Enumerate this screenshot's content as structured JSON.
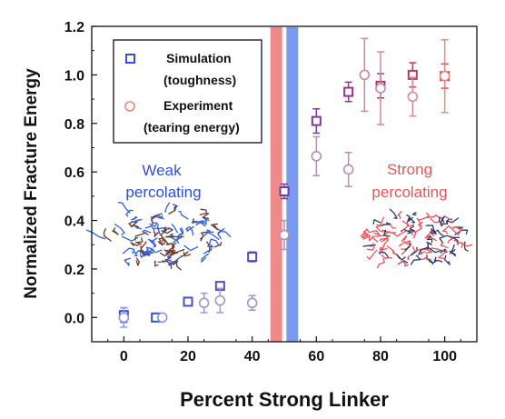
{
  "chart_data": {
    "type": "scatter",
    "xlabel": "Percent Strong Linker",
    "ylabel": "Normalized Fracture Energy",
    "xlim": [
      -10,
      110
    ],
    "ylim": [
      -0.1,
      1.2
    ],
    "xticks": [
      0,
      20,
      40,
      60,
      80,
      100
    ],
    "yticks": [
      0.0,
      0.2,
      0.4,
      0.6,
      0.8,
      1.0,
      1.2
    ],
    "xtick_labels": [
      "0",
      "20",
      "40",
      "60",
      "80",
      "100"
    ],
    "ytick_labels": [
      "0.0",
      "0.2",
      "0.4",
      "0.6",
      "0.8",
      "1.0",
      "1.2"
    ],
    "legend_position": "top-left",
    "legend": [
      {
        "marker": "square",
        "line1": "Simulation",
        "line2": "(toughness)"
      },
      {
        "marker": "circle",
        "line1": "Experiment",
        "line2": "(tearing energy)"
      }
    ],
    "bands": [
      {
        "x": 47.5,
        "color": "#f08a8a"
      },
      {
        "x": 52.5,
        "color": "#7a9af0"
      }
    ],
    "annotations": [
      {
        "line1": "Weak",
        "line2": "percolating",
        "color": "#2f4fd8"
      },
      {
        "line1": "Strong",
        "line2": "percolating",
        "color": "#e8545a"
      }
    ],
    "series": [
      {
        "marker": "square",
        "points": [
          {
            "x": 0,
            "y": 0.01,
            "err": 0.03,
            "color": "#3a4fd0"
          },
          {
            "x": 10,
            "y": 0.0,
            "err": 0.0,
            "color": "#3a4fd0"
          },
          {
            "x": 20,
            "y": 0.065,
            "err": 0.0,
            "color": "#4a4ec8"
          },
          {
            "x": 30,
            "y": 0.13,
            "err": 0.0,
            "color": "#574cc2"
          },
          {
            "x": 40,
            "y": 0.25,
            "err": 0.02,
            "color": "#5e49b8"
          },
          {
            "x": 50,
            "y": 0.52,
            "err": 0.03,
            "color": "#6e3ea8"
          },
          {
            "x": 60,
            "y": 0.81,
            "err": 0.05,
            "color": "#7e3a98"
          },
          {
            "x": 70,
            "y": 0.93,
            "err": 0.04,
            "color": "#8e3888"
          },
          {
            "x": 80,
            "y": 0.955,
            "err": 0.05,
            "color": "#a23878"
          },
          {
            "x": 90,
            "y": 1.0,
            "err": 0.05,
            "color": "#b83a66"
          },
          {
            "x": 100,
            "y": 0.995,
            "err": 0.05,
            "color": "#d23c52"
          }
        ]
      },
      {
        "marker": "circle",
        "points": [
          {
            "x": 0,
            "y": 0.0,
            "err": 0.04,
            "color": "#8a9ae0"
          },
          {
            "x": 12,
            "y": 0.0,
            "err": 0.0,
            "color": "#8c98dc"
          },
          {
            "x": 25,
            "y": 0.06,
            "err": 0.04,
            "color": "#9a98d0"
          },
          {
            "x": 30,
            "y": 0.07,
            "err": 0.05,
            "color": "#a096c8"
          },
          {
            "x": 40,
            "y": 0.06,
            "err": 0.03,
            "color": "#a894c2"
          },
          {
            "x": 50,
            "y": 0.34,
            "err": 0.06,
            "color": "#b490b8"
          },
          {
            "x": 60,
            "y": 0.665,
            "err": 0.08,
            "color": "#bc8cb0"
          },
          {
            "x": 70,
            "y": 0.61,
            "err": 0.07,
            "color": "#c488a8"
          },
          {
            "x": 75,
            "y": 1.0,
            "err": 0.15,
            "color": "#cc86a0"
          },
          {
            "x": 80,
            "y": 0.945,
            "err": 0.15,
            "color": "#d48696"
          },
          {
            "x": 90,
            "y": 0.91,
            "err": 0.08,
            "color": "#dc8a8c"
          },
          {
            "x": 100,
            "y": 0.995,
            "err": 0.15,
            "color": "#e48a84"
          }
        ]
      }
    ]
  }
}
